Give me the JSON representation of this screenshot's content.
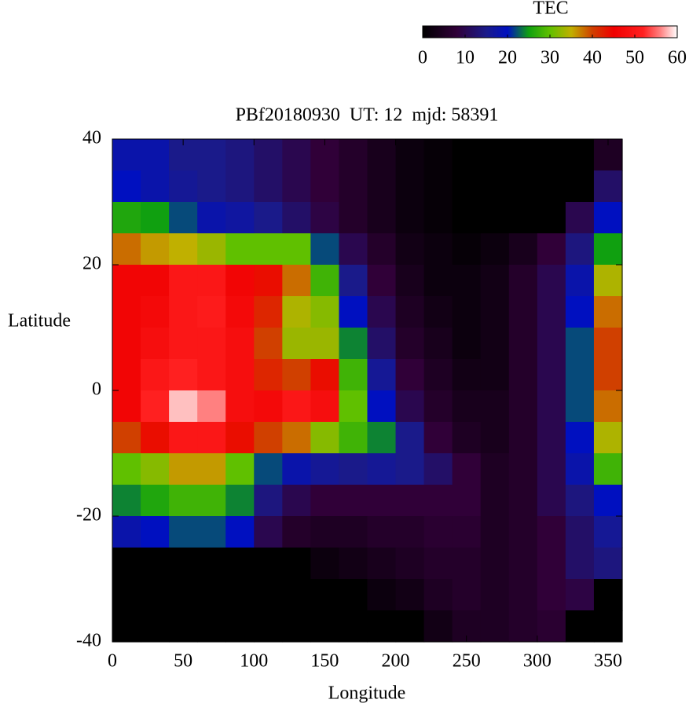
{
  "chart_data": {
    "type": "heatmap",
    "title": "PBf20180930  UT: 12  mjd: 58391",
    "x_label": "Longitude",
    "y_label": "Latitude",
    "colorbar_label": "TEC",
    "xlim": [
      0,
      360
    ],
    "ylim": [
      -40,
      40
    ],
    "xticks": [
      0,
      50,
      100,
      150,
      200,
      250,
      300,
      350
    ],
    "yticks": [
      -40,
      -20,
      0,
      20,
      40
    ],
    "zlim": [
      0,
      60
    ],
    "zticks": [
      0,
      10,
      20,
      30,
      40,
      50,
      60
    ],
    "colorscale": [
      [
        0,
        "#000000"
      ],
      [
        8,
        "#300038"
      ],
      [
        15,
        "#1a1a8a"
      ],
      [
        20,
        "#0010c0"
      ],
      [
        25,
        "#10a010"
      ],
      [
        30,
        "#60c000"
      ],
      [
        35,
        "#c0b000"
      ],
      [
        40,
        "#d04000"
      ],
      [
        45,
        "#f00000"
      ],
      [
        52,
        "#ff2020"
      ],
      [
        56,
        "#ff8080"
      ],
      [
        60,
        "#ffffff"
      ]
    ],
    "x": [
      10,
      30,
      50,
      70,
      90,
      110,
      130,
      150,
      170,
      190,
      210,
      230,
      250,
      270,
      290,
      310,
      330,
      350
    ],
    "y": [
      37.5,
      32.5,
      27.5,
      22.5,
      17.5,
      12.5,
      7.5,
      2.5,
      -2.5,
      -7.5,
      -12.5,
      -17.5,
      -22.5,
      -27.5,
      -32.5,
      -37.5
    ],
    "z": [
      [
        18,
        18,
        15,
        15,
        14,
        12,
        10,
        8,
        6,
        4,
        2,
        1,
        0,
        0,
        0,
        0,
        0,
        5
      ],
      [
        20,
        18,
        16,
        15,
        14,
        12,
        10,
        8,
        6,
        4,
        2,
        1,
        0,
        0,
        0,
        0,
        0,
        12
      ],
      [
        26,
        25,
        22,
        18,
        17,
        15,
        12,
        9,
        6,
        4,
        2,
        1,
        0,
        0,
        0,
        0,
        10,
        20
      ],
      [
        38,
        36,
        35,
        33,
        30,
        30,
        30,
        22,
        10,
        6,
        3,
        2,
        1,
        2,
        4,
        8,
        14,
        25
      ],
      [
        46,
        46,
        50,
        50,
        46,
        44,
        38,
        28,
        15,
        8,
        4,
        2,
        2,
        3,
        6,
        10,
        18,
        34
      ],
      [
        46,
        47,
        50,
        51,
        47,
        42,
        34,
        32,
        20,
        10,
        5,
        3,
        2,
        3,
        6,
        10,
        20,
        38
      ],
      [
        46,
        48,
        50,
        50,
        48,
        40,
        33,
        33,
        24,
        12,
        6,
        4,
        2,
        3,
        6,
        10,
        22,
        40
      ],
      [
        46,
        50,
        52,
        50,
        48,
        42,
        40,
        44,
        28,
        16,
        8,
        5,
        3,
        3,
        6,
        10,
        22,
        40
      ],
      [
        46,
        52,
        58,
        56,
        48,
        47,
        50,
        48,
        30,
        20,
        10,
        6,
        4,
        4,
        6,
        10,
        22,
        38
      ],
      [
        40,
        44,
        50,
        50,
        44,
        40,
        38,
        32,
        28,
        24,
        15,
        8,
        5,
        4,
        6,
        10,
        20,
        34
      ],
      [
        30,
        32,
        36,
        36,
        30,
        22,
        18,
        16,
        15,
        16,
        15,
        12,
        8,
        5,
        6,
        10,
        18,
        28
      ],
      [
        24,
        26,
        28,
        28,
        24,
        14,
        10,
        8,
        8,
        8,
        8,
        8,
        8,
        5,
        6,
        10,
        14,
        20
      ],
      [
        18,
        20,
        22,
        22,
        20,
        10,
        6,
        5,
        5,
        6,
        6,
        7,
        7,
        5,
        6,
        8,
        12,
        16
      ],
      [
        0,
        0,
        0,
        0,
        0,
        0,
        0,
        2,
        3,
        4,
        5,
        6,
        6,
        5,
        6,
        8,
        12,
        14
      ],
      [
        0,
        0,
        0,
        0,
        0,
        0,
        0,
        0,
        0,
        2,
        3,
        5,
        6,
        5,
        6,
        8,
        9,
        0
      ],
      [
        0,
        0,
        0,
        0,
        0,
        0,
        0,
        0,
        0,
        0,
        0,
        3,
        5,
        5,
        6,
        7,
        0,
        0
      ]
    ]
  }
}
